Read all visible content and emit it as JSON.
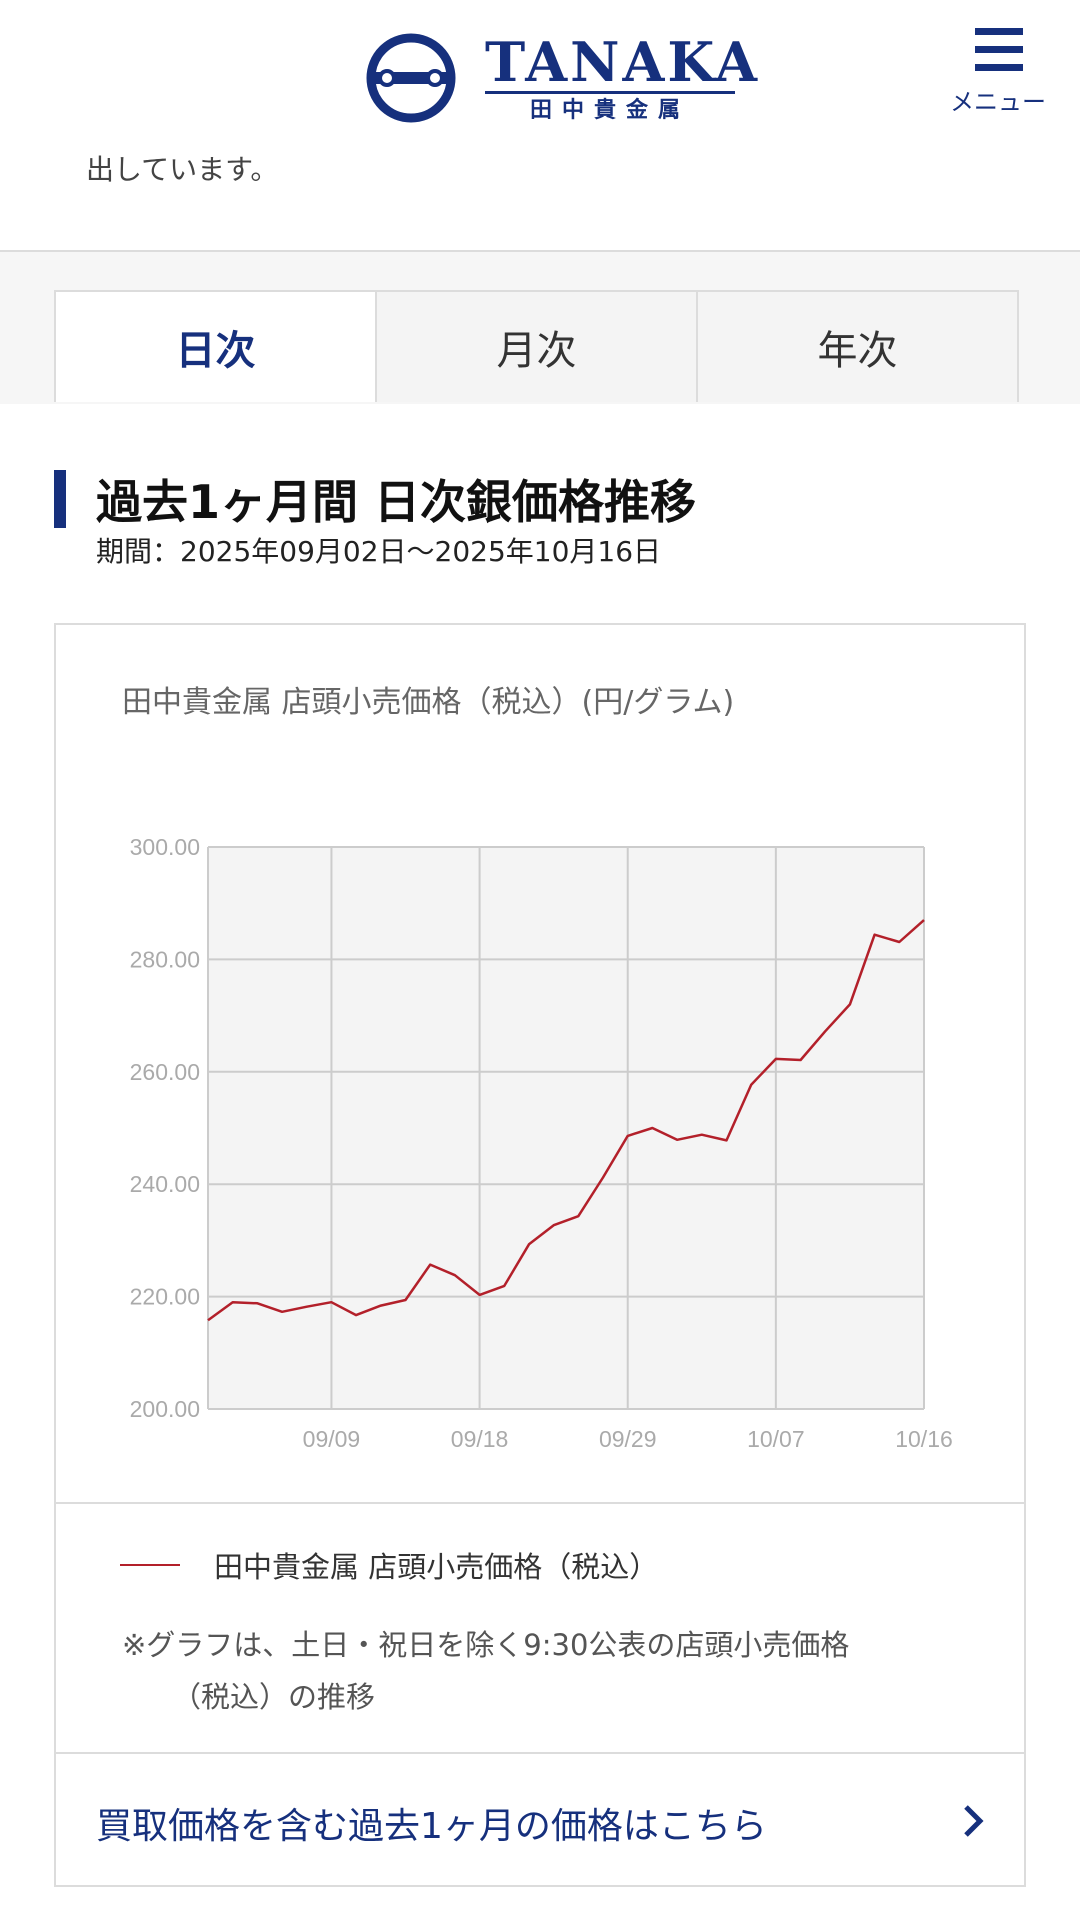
{
  "header": {
    "logo_text": "TANAKA",
    "logo_subtext": "田中貴金属",
    "menu_label": "メニュー"
  },
  "intro_text": "出しています。",
  "tabs": [
    {
      "label": "日次",
      "active": true
    },
    {
      "label": "月次",
      "active": false
    },
    {
      "label": "年次",
      "active": false
    }
  ],
  "section": {
    "title": "過去1ヶ月間 日次銀価格推移",
    "period": "期間：2025年09月02日～2025年10月16日"
  },
  "chart_caption": "田中貴金属 店頭小売価格（税込）(円/グラム)",
  "chart_data": {
    "type": "line",
    "title": "田中貴金属 店頭小売価格（税込）(円/グラム)",
    "xlabel": "",
    "ylabel": "",
    "ylim": [
      200,
      300
    ],
    "y_ticks": [
      "200.00",
      "220.00",
      "240.00",
      "260.00",
      "280.00",
      "300.00"
    ],
    "x_ticks": [
      {
        "label": "09/09",
        "index": 5
      },
      {
        "label": "09/18",
        "index": 11
      },
      {
        "label": "09/29",
        "index": 17
      },
      {
        "label": "10/07",
        "index": 23
      },
      {
        "label": "10/16",
        "index": 29
      }
    ],
    "grid": true,
    "legend_position": "bottom",
    "series": [
      {
        "name": "田中貴金属 店頭小売価格（税込）",
        "color": "#b3202a",
        "values": [
          215.8,
          219.0,
          218.8,
          217.3,
          218.2,
          219.0,
          216.7,
          218.4,
          219.4,
          225.7,
          223.8,
          220.3,
          221.9,
          229.3,
          232.7,
          234.3,
          241.2,
          248.6,
          250.0,
          247.9,
          248.8,
          247.8,
          257.7,
          262.3,
          262.1,
          267.2,
          272.0,
          284.4,
          283.1,
          287.0
        ]
      }
    ]
  },
  "legend_label": "田中貴金属 店頭小売価格（税込）",
  "note": {
    "line1": "※グラフは、土日・祝日を除く9:30公表の店頭小売価格",
    "line2": "（税込）の推移"
  },
  "link_text": "買取価格を含む過去1ヶ月の価格はこちら",
  "colors": {
    "brand": "#16307d",
    "series": "#b3202a",
    "plot_bg": "#f4f4f4",
    "grid": "#cccccc"
  }
}
